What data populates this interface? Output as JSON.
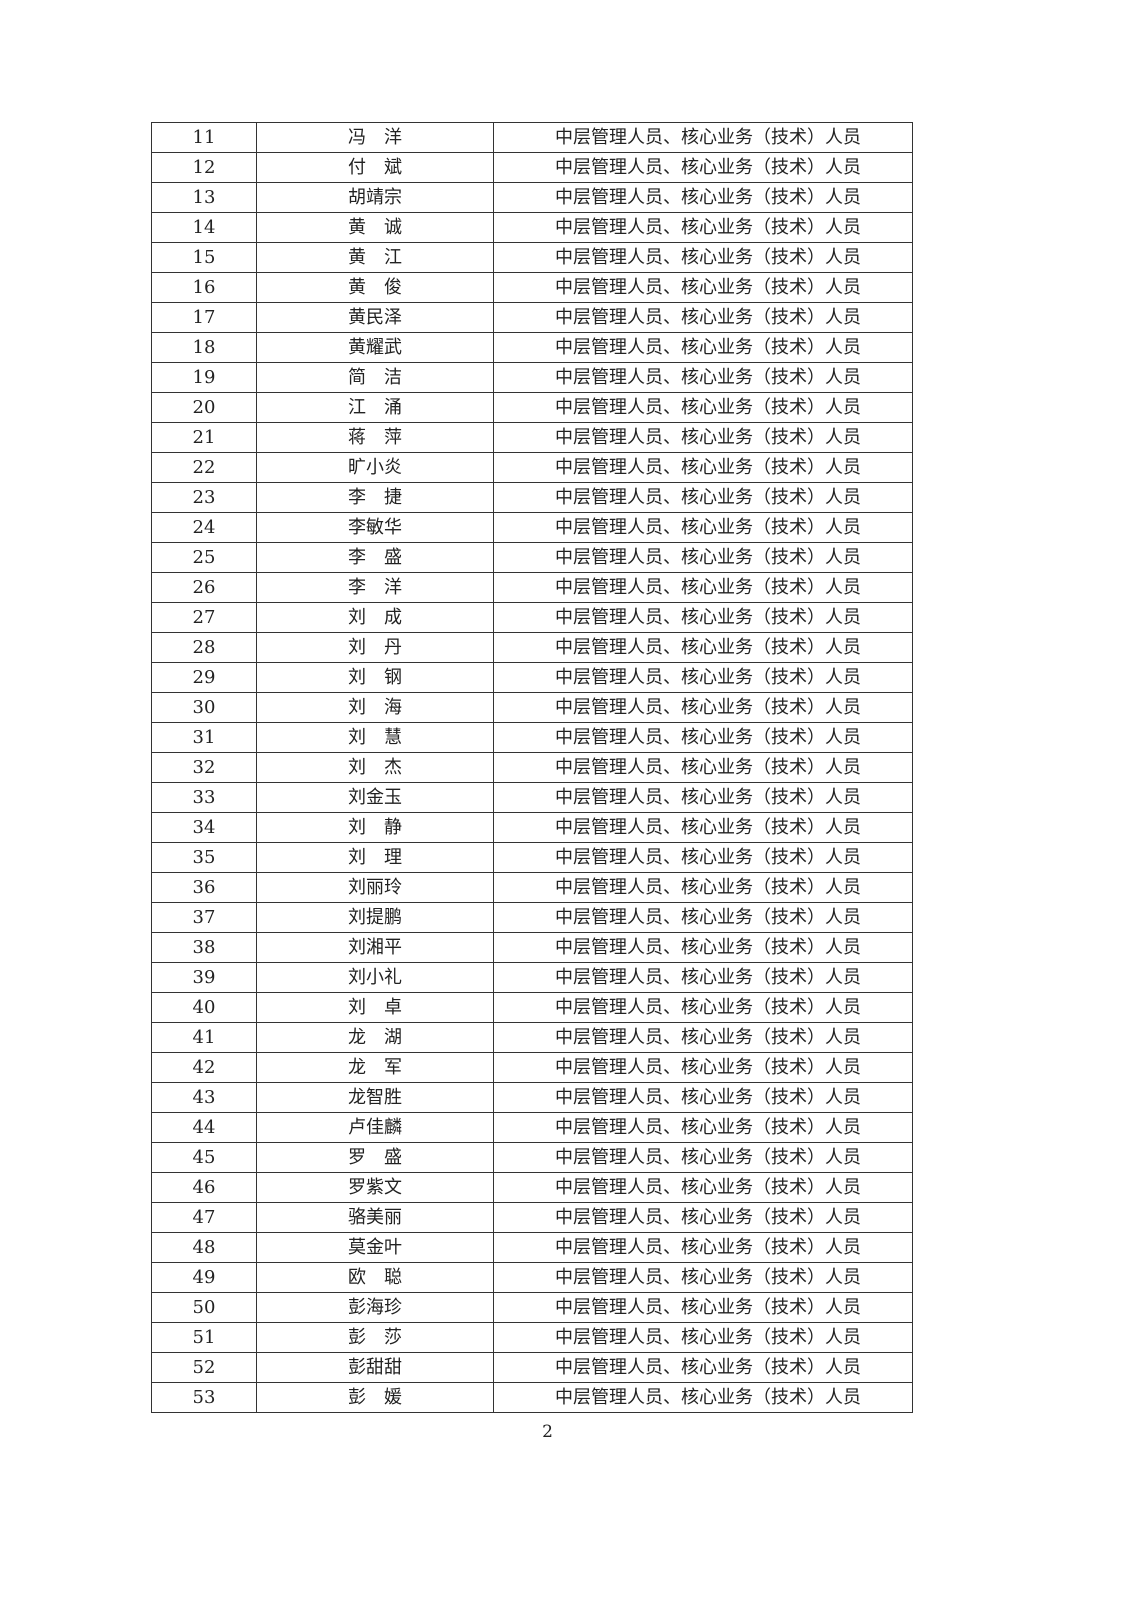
{
  "table": {
    "rows": [
      {
        "no": "11",
        "name": "冯　洋",
        "role": "中层管理人员、核心业务（技术）人员"
      },
      {
        "no": "12",
        "name": "付　斌",
        "role": "中层管理人员、核心业务（技术）人员"
      },
      {
        "no": "13",
        "name": "胡靖宗",
        "role": "中层管理人员、核心业务（技术）人员"
      },
      {
        "no": "14",
        "name": "黄　诚",
        "role": "中层管理人员、核心业务（技术）人员"
      },
      {
        "no": "15",
        "name": "黄　江",
        "role": "中层管理人员、核心业务（技术）人员"
      },
      {
        "no": "16",
        "name": "黄　俊",
        "role": "中层管理人员、核心业务（技术）人员"
      },
      {
        "no": "17",
        "name": "黄民泽",
        "role": "中层管理人员、核心业务（技术）人员"
      },
      {
        "no": "18",
        "name": "黄耀武",
        "role": "中层管理人员、核心业务（技术）人员"
      },
      {
        "no": "19",
        "name": "简　洁",
        "role": "中层管理人员、核心业务（技术）人员"
      },
      {
        "no": "20",
        "name": "江　涌",
        "role": "中层管理人员、核心业务（技术）人员"
      },
      {
        "no": "21",
        "name": "蒋　萍",
        "role": "中层管理人员、核心业务（技术）人员"
      },
      {
        "no": "22",
        "name": "旷小炎",
        "role": "中层管理人员、核心业务（技术）人员"
      },
      {
        "no": "23",
        "name": "李　捷",
        "role": "中层管理人员、核心业务（技术）人员"
      },
      {
        "no": "24",
        "name": "李敏华",
        "role": "中层管理人员、核心业务（技术）人员"
      },
      {
        "no": "25",
        "name": "李　盛",
        "role": "中层管理人员、核心业务（技术）人员"
      },
      {
        "no": "26",
        "name": "李　洋",
        "role": "中层管理人员、核心业务（技术）人员"
      },
      {
        "no": "27",
        "name": "刘　成",
        "role": "中层管理人员、核心业务（技术）人员"
      },
      {
        "no": "28",
        "name": "刘　丹",
        "role": "中层管理人员、核心业务（技术）人员"
      },
      {
        "no": "29",
        "name": "刘　钢",
        "role": "中层管理人员、核心业务（技术）人员"
      },
      {
        "no": "30",
        "name": "刘　海",
        "role": "中层管理人员、核心业务（技术）人员"
      },
      {
        "no": "31",
        "name": "刘　慧",
        "role": "中层管理人员、核心业务（技术）人员"
      },
      {
        "no": "32",
        "name": "刘　杰",
        "role": "中层管理人员、核心业务（技术）人员"
      },
      {
        "no": "33",
        "name": "刘金玉",
        "role": "中层管理人员、核心业务（技术）人员"
      },
      {
        "no": "34",
        "name": "刘　静",
        "role": "中层管理人员、核心业务（技术）人员"
      },
      {
        "no": "35",
        "name": "刘　理",
        "role": "中层管理人员、核心业务（技术）人员"
      },
      {
        "no": "36",
        "name": "刘丽玲",
        "role": "中层管理人员、核心业务（技术）人员"
      },
      {
        "no": "37",
        "name": "刘提鹏",
        "role": "中层管理人员、核心业务（技术）人员"
      },
      {
        "no": "38",
        "name": "刘湘平",
        "role": "中层管理人员、核心业务（技术）人员"
      },
      {
        "no": "39",
        "name": "刘小礼",
        "role": "中层管理人员、核心业务（技术）人员"
      },
      {
        "no": "40",
        "name": "刘　卓",
        "role": "中层管理人员、核心业务（技术）人员"
      },
      {
        "no": "41",
        "name": "龙　湖",
        "role": "中层管理人员、核心业务（技术）人员"
      },
      {
        "no": "42",
        "name": "龙　军",
        "role": "中层管理人员、核心业务（技术）人员"
      },
      {
        "no": "43",
        "name": "龙智胜",
        "role": "中层管理人员、核心业务（技术）人员"
      },
      {
        "no": "44",
        "name": "卢佳麟",
        "role": "中层管理人员、核心业务（技术）人员"
      },
      {
        "no": "45",
        "name": "罗　盛",
        "role": "中层管理人员、核心业务（技术）人员"
      },
      {
        "no": "46",
        "name": "罗紫文",
        "role": "中层管理人员、核心业务（技术）人员"
      },
      {
        "no": "47",
        "name": "骆美丽",
        "role": "中层管理人员、核心业务（技术）人员"
      },
      {
        "no": "48",
        "name": "莫金叶",
        "role": "中层管理人员、核心业务（技术）人员"
      },
      {
        "no": "49",
        "name": "欧　聪",
        "role": "中层管理人员、核心业务（技术）人员"
      },
      {
        "no": "50",
        "name": "彭海珍",
        "role": "中层管理人员、核心业务（技术）人员"
      },
      {
        "no": "51",
        "name": "彭　莎",
        "role": "中层管理人员、核心业务（技术）人员"
      },
      {
        "no": "52",
        "name": "彭甜甜",
        "role": "中层管理人员、核心业务（技术）人员"
      },
      {
        "no": "53",
        "name": "彭　媛",
        "role": "中层管理人员、核心业务（技术）人员"
      }
    ]
  },
  "page_number": "2"
}
